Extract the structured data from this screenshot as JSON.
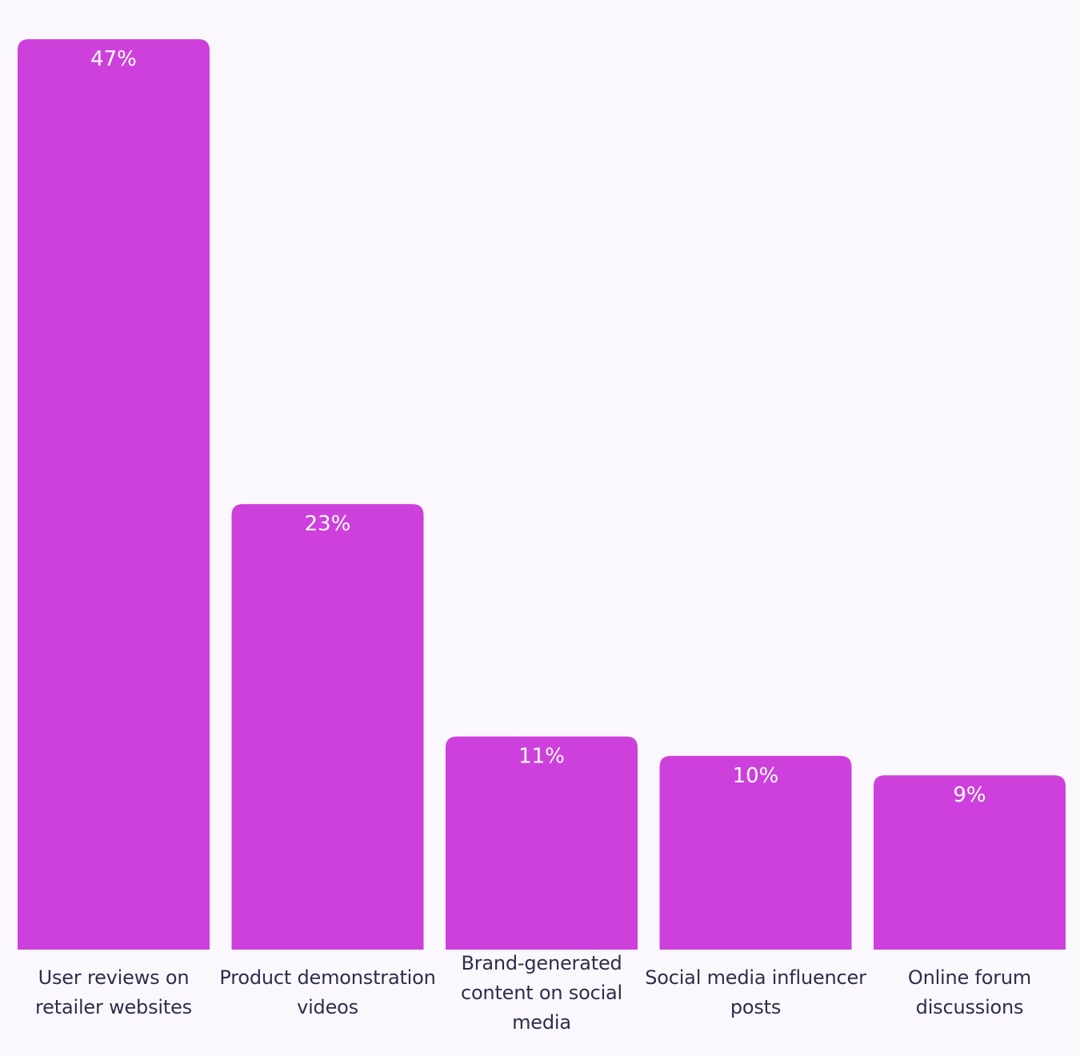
{
  "chart_data": {
    "type": "bar",
    "categories": [
      "User reviews on retailer websites",
      "Product demonstration videos",
      "Brand-generated content on social media",
      "Social media influencer posts",
      "Online forum discussions"
    ],
    "values": [
      47,
      23,
      11,
      10,
      9
    ],
    "value_labels": [
      "47%",
      "23%",
      "11%",
      "10%",
      "9%"
    ],
    "ylim": [
      0,
      47
    ],
    "grid": false,
    "legend": "none",
    "bar_color": "#ce40dc",
    "label_color": "#ffffff",
    "category_color": "#2b2f4a",
    "background": "#fbf8fd"
  }
}
